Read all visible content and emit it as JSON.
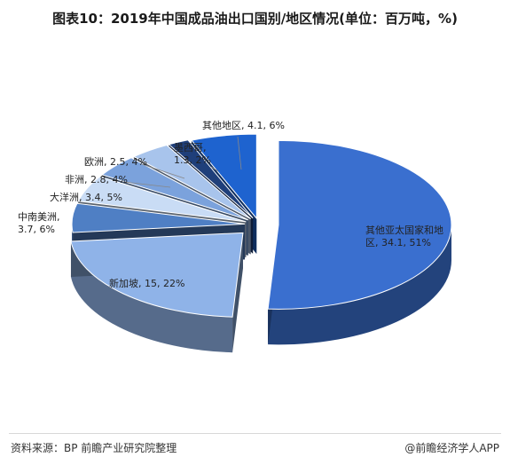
{
  "title": "图表10：2019年中国成品油出口国别/地区情况(单位：百万吨，%)",
  "source": "资料来源：BP 前瞻产业研究院整理",
  "brand": "@前瞻经济学人APP",
  "colors": {
    "other_asia_pacific": "#3a6fcf",
    "singapore": "#8fb3e8",
    "central_south_america": "#4f7fc4",
    "oceania": "#c9dcf5",
    "africa": "#7ba2dc",
    "europe": "#a8c4ec",
    "mexico": "#1f3f7a",
    "other_regions": "#1e63cf"
  },
  "chart_data": {
    "type": "pie",
    "title": "图表10：2019年中国成品油出口国别/地区情况(单位：百万吨，%)",
    "unit": "百万吨",
    "slices": [
      {
        "name": "其他亚太国家和地区",
        "value": 34.1,
        "percent": 51,
        "label_line1": "其他亚太国家和地",
        "label_line2": "区, 34.1, 51%"
      },
      {
        "name": "新加坡",
        "value": 15,
        "percent": 22,
        "label_line1": "新加坡, 15, 22%",
        "label_line2": ""
      },
      {
        "name": "中南美洲",
        "value": 3.7,
        "percent": 6,
        "label_line1": "中南美洲,",
        "label_line2": "3.7, 6%"
      },
      {
        "name": "大洋洲",
        "value": 3.4,
        "percent": 5,
        "label_line1": "大洋洲, 3.4, 5%",
        "label_line2": ""
      },
      {
        "name": "非洲",
        "value": 2.8,
        "percent": 4,
        "label_line1": "非洲, 2.8, 4%",
        "label_line2": ""
      },
      {
        "name": "欧洲",
        "value": 2.5,
        "percent": 4,
        "label_line1": "欧洲, 2.5, 4%",
        "label_line2": ""
      },
      {
        "name": "墨西哥",
        "value": 1.3,
        "percent": 2,
        "label_line1": "墨西哥,",
        "label_line2": "1.3, 2%"
      },
      {
        "name": "其他地区",
        "value": 4.1,
        "percent": 6,
        "label_line1": "其他地区, 4.1, 6%",
        "label_line2": ""
      }
    ]
  }
}
